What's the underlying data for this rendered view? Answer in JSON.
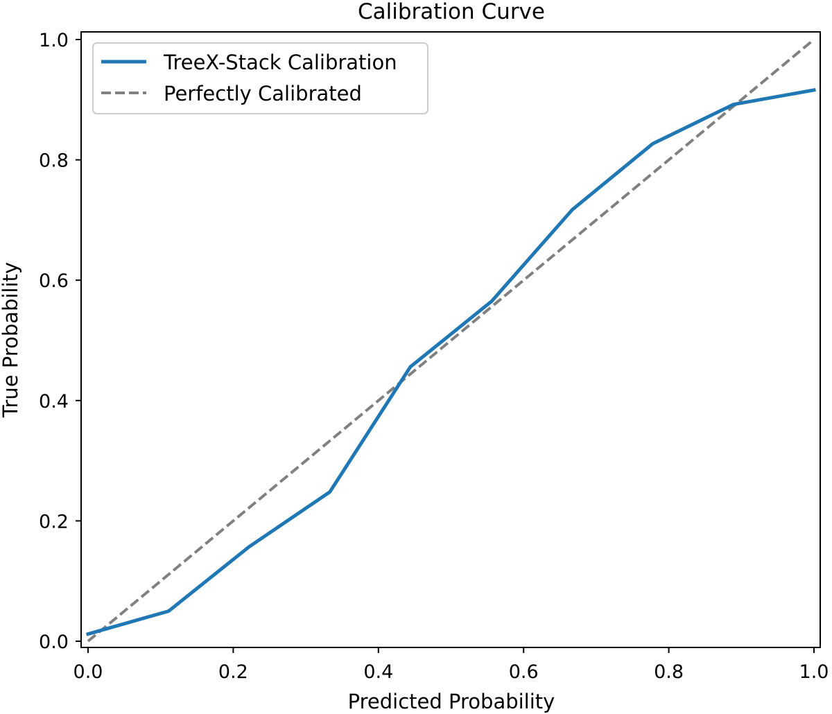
{
  "chart_data": {
    "type": "line",
    "title": "Calibration Curve",
    "xlabel": "Predicted Probability",
    "ylabel": "True Probability",
    "xlim": [
      0.0,
      1.0
    ],
    "ylim": [
      0.0,
      1.0
    ],
    "xticks": [
      "0.0",
      "0.2",
      "0.4",
      "0.6",
      "0.8",
      "1.0"
    ],
    "yticks": [
      "0.0",
      "0.2",
      "0.4",
      "0.6",
      "0.8",
      "1.0"
    ],
    "grid": false,
    "legend_position": "top-left",
    "series": [
      {
        "name": "TreeX-Stack Calibration",
        "color": "#1f77b4",
        "style": "solid",
        "x": [
          0.0,
          0.111,
          0.222,
          0.333,
          0.444,
          0.556,
          0.667,
          0.778,
          0.889,
          1.0
        ],
        "y": [
          0.012,
          0.05,
          0.157,
          0.248,
          0.456,
          0.565,
          0.717,
          0.827,
          0.892,
          0.916
        ]
      },
      {
        "name": "Perfectly Calibrated",
        "color": "#808080",
        "style": "dashed",
        "x": [
          0.0,
          1.0
        ],
        "y": [
          0.0,
          1.0
        ]
      }
    ]
  }
}
